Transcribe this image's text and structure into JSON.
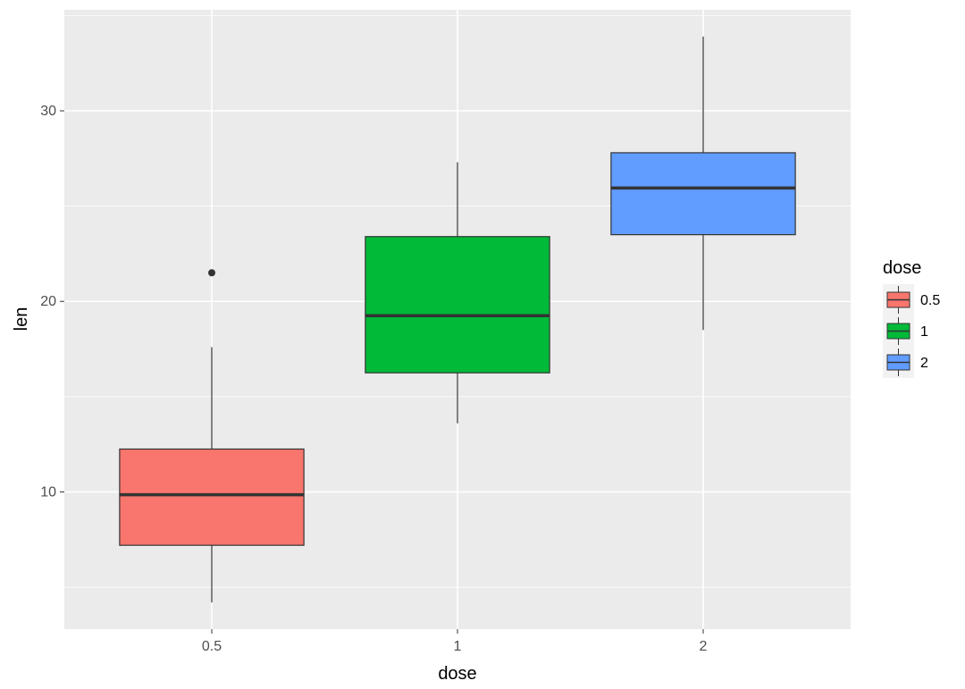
{
  "chart_data": {
    "type": "box",
    "xlabel": "dose",
    "ylabel": "len",
    "categories": [
      "0.5",
      "1",
      "2"
    ],
    "ylim": [
      2.8,
      35.3
    ],
    "yticks": [
      10,
      20,
      30
    ],
    "grid": true,
    "legend": {
      "title": "dose",
      "position": "right",
      "entries": [
        "0.5",
        "1",
        "2"
      ]
    },
    "boxes": [
      {
        "category": "0.5",
        "whisker_low": 4.2,
        "q1": 7.2,
        "median": 9.85,
        "q3": 12.25,
        "whisker_high": 17.6,
        "outliers": [
          21.5
        ],
        "color": "#F8766D"
      },
      {
        "category": "1",
        "whisker_low": 13.6,
        "q1": 16.25,
        "median": 19.25,
        "q3": 23.4,
        "whisker_high": 27.3,
        "outliers": [],
        "color": "#00BA38"
      },
      {
        "category": "2",
        "whisker_low": 18.5,
        "q1": 23.5,
        "median": 25.95,
        "q3": 27.8,
        "whisker_high": 33.9,
        "outliers": [],
        "color": "#619CFF"
      }
    ],
    "colors": {
      "panel": "#EBEBEB",
      "grid": "#FFFFFF",
      "box_line": "#333333"
    }
  }
}
